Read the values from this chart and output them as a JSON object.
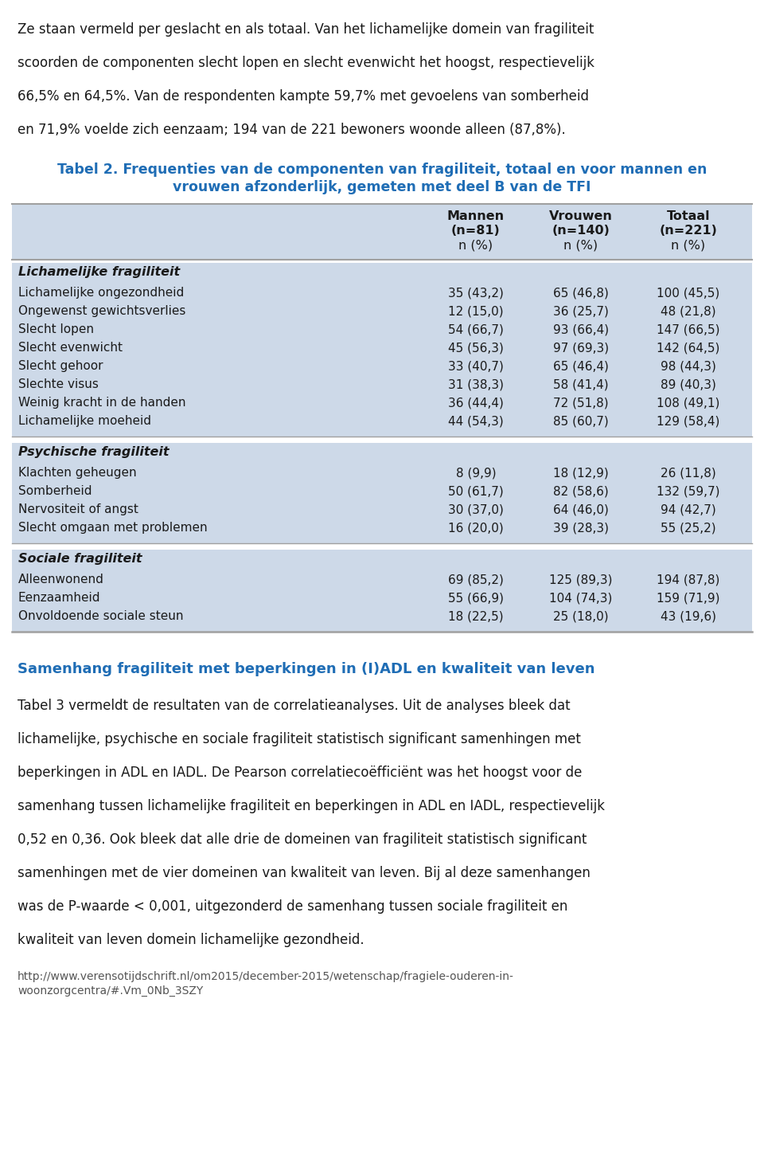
{
  "intro_text_lines": [
    "Ze staan vermeld per geslacht en als totaal. Van het lichamelijke domein van fragiliteit",
    "scoorden de componenten slecht lopen en slecht evenwicht het hoogst, respectievelijk",
    "66,5% en 64,5%. Van de respondenten kampte 59,7% met gevoelens van somberheid",
    "en 71,9% voelde zich eenzaam; 194 van de 221 bewoners woonde alleen (87,8%)."
  ],
  "table_title_line1": "Tabel 2. Frequenties van de componenten van fragiliteit, totaal en voor mannen en",
  "table_title_line2": "vrouwen afzonderlijk, gemeten met deel B van de TFI",
  "sections": [
    {
      "section_header": "Lichamelijke fragiliteit",
      "rows": [
        [
          "Lichamelijke ongezondheid",
          "35 (43,2)",
          "65 (46,8)",
          "100 (45,5)"
        ],
        [
          "Ongewenst gewichtsverlies",
          "12 (15,0)",
          "36 (25,7)",
          "48 (21,8)"
        ],
        [
          "Slecht lopen",
          "54 (66,7)",
          "93 (66,4)",
          "147 (66,5)"
        ],
        [
          "Slecht evenwicht",
          "45 (56,3)",
          "97 (69,3)",
          "142 (64,5)"
        ],
        [
          "Slecht gehoor",
          "33 (40,7)",
          "65 (46,4)",
          "98 (44,3)"
        ],
        [
          "Slechte visus",
          "31 (38,3)",
          "58 (41,4)",
          "89 (40,3)"
        ],
        [
          "Weinig kracht in de handen",
          "36 (44,4)",
          "72 (51,8)",
          "108 (49,1)"
        ],
        [
          "Lichamelijke moeheid",
          "44 (54,3)",
          "85 (60,7)",
          "129 (58,4)"
        ]
      ]
    },
    {
      "section_header": "Psychische fragiliteit",
      "rows": [
        [
          "Klachten geheugen",
          "8 (9,9)",
          "18 (12,9)",
          "26 (11,8)"
        ],
        [
          "Somberheid",
          "50 (61,7)",
          "82 (58,6)",
          "132 (59,7)"
        ],
        [
          "Nervositeit of angst",
          "30 (37,0)",
          "64 (46,0)",
          "94 (42,7)"
        ],
        [
          "Slecht omgaan met problemen",
          "16 (20,0)",
          "39 (28,3)",
          "55 (25,2)"
        ]
      ]
    },
    {
      "section_header": "Sociale fragiliteit",
      "rows": [
        [
          "Alleenwonend",
          "69 (85,2)",
          "125 (89,3)",
          "194 (87,8)"
        ],
        [
          "Eenzaamheid",
          "55 (66,9)",
          "104 (74,3)",
          "159 (71,9)"
        ],
        [
          "Onvoldoende sociale steun",
          "18 (22,5)",
          "25 (18,0)",
          "43 (19,6)"
        ]
      ]
    }
  ],
  "section_heading": "Samenhang fragiliteit met beperkingen in (I)ADL en kwaliteit van leven",
  "body_text_lines": [
    "Tabel 3 vermeldt de resultaten van de correlatieanalyses. Uit de analyses bleek dat",
    "lichamelijke, psychische en sociale fragiliteit statistisch significant samenhingen met",
    "beperkingen in ADL en IADL. De Pearson correlatiecoëfficiënt was het hoogst voor de",
    "samenhang tussen lichamelijke fragiliteit en beperkingen in ADL en IADL, respectievelijk",
    "0,52 en 0,36. Ook bleek dat alle drie de domeinen van fragiliteit statistisch significant",
    "samenhingen met de vier domeinen van kwaliteit van leven. Bij al deze samenhangen",
    "was de P-waarde < 0,001, uitgezonderd de samenhang tussen sociale fragiliteit en",
    "kwaliteit van leven domein lichamelijke gezondheid."
  ],
  "footer_line1": "http://www.verensotijdschrift.nl/om2015/december-2015/wetenschap/fragiele-ouderen-in-",
  "footer_line2": "woonzorgcentra/#.Vm_0Nb_3SZY",
  "table_bg_color": "#cdd9e8",
  "table_title_color": "#1f6db5",
  "section_heading_color": "#1f6db5",
  "text_color": "#1a1a1a",
  "footer_color": "#555555",
  "line_color": "#a0a0a0",
  "bg_color": "#ffffff"
}
